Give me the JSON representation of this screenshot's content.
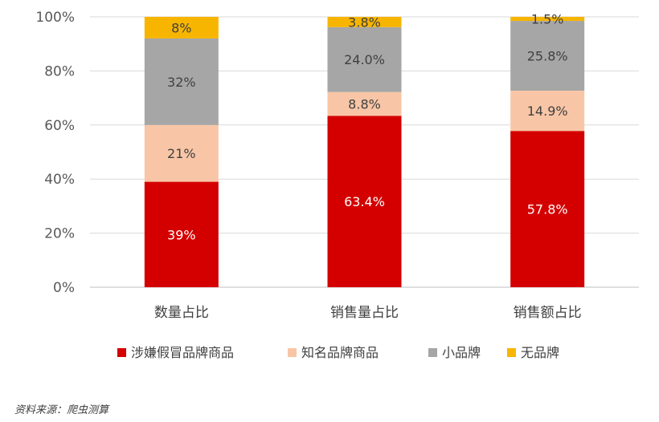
{
  "chart_data": {
    "type": "bar",
    "stacked": true,
    "percent_stacked": true,
    "categories": [
      "数量占比",
      "销售量占比",
      "销售额占比"
    ],
    "series": [
      {
        "name": "涉嫌假冒品牌商品",
        "values": [
          39,
          63.4,
          57.8
        ],
        "labels": [
          "39%",
          "63.4%",
          "57.8%"
        ],
        "color": "#d40000",
        "label_color": "#ffffff"
      },
      {
        "name": "知名品牌商品",
        "values": [
          21,
          8.8,
          14.9
        ],
        "labels": [
          "21%",
          "8.8%",
          "14.9%"
        ],
        "color": "#f8c6a6",
        "label_color": "#404040"
      },
      {
        "name": "小品牌",
        "values": [
          32,
          24.0,
          25.8
        ],
        "labels": [
          "32%",
          "24.0%",
          "25.8%"
        ],
        "color": "#a6a6a6",
        "label_color": "#404040"
      },
      {
        "name": "无品牌",
        "values": [
          8,
          3.8,
          1.5
        ],
        "labels": [
          "8%",
          "3.8%",
          "1.5%"
        ],
        "color": "#f7b500",
        "label_color": "#404040"
      }
    ],
    "yticks": [
      "0%",
      "20%",
      "40%",
      "60%",
      "80%",
      "100%"
    ],
    "ylim": [
      0,
      100
    ],
    "grid": true,
    "legend": "bottom"
  },
  "source": "资料来源：爬虫测算"
}
